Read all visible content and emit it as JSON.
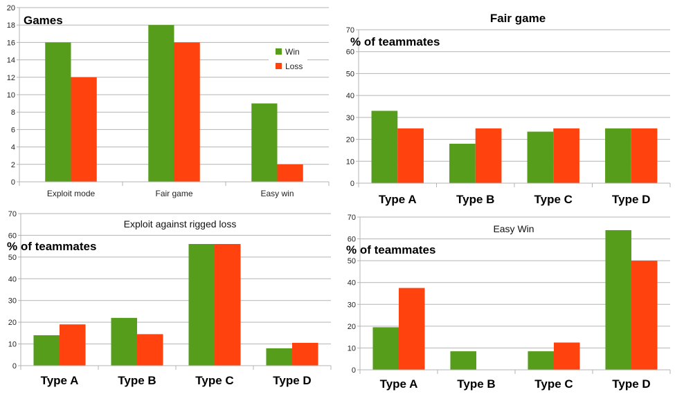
{
  "colors": {
    "win": "#579d1c",
    "loss": "#ff420e",
    "grid": "#b3b3b3"
  },
  "chart_data": [
    {
      "type": "bar",
      "title": "Games",
      "ylabel": "",
      "categories": [
        "Exploit mode",
        "Fair game",
        "Easy win"
      ],
      "series": [
        {
          "name": "Win",
          "values": [
            16,
            18,
            9
          ]
        },
        {
          "name": "Loss",
          "values": [
            12,
            16,
            2
          ]
        }
      ],
      "ylim": [
        0,
        20
      ],
      "yticks": [
        0,
        2,
        4,
        6,
        8,
        10,
        12,
        14,
        16,
        18,
        20
      ],
      "grid": true,
      "legend": "top-right"
    },
    {
      "type": "bar",
      "title": "Fair game",
      "ylabel": "% of teammates",
      "categories": [
        "Type A",
        "Type B",
        "Type C",
        "Type D"
      ],
      "series": [
        {
          "name": "Win",
          "values": [
            33,
            18,
            23.5,
            25
          ]
        },
        {
          "name": "Loss",
          "values": [
            25,
            25,
            25,
            25
          ]
        }
      ],
      "ylim": [
        0,
        70
      ],
      "yticks": [
        0,
        10,
        20,
        30,
        40,
        50,
        60,
        70
      ],
      "grid": true
    },
    {
      "type": "bar",
      "title": "Exploit against rigged loss",
      "ylabel": "% of teammates",
      "categories": [
        "Type A",
        "Type B",
        "Type C",
        "Type D"
      ],
      "series": [
        {
          "name": "Win",
          "values": [
            14,
            22,
            56,
            8
          ]
        },
        {
          "name": "Loss",
          "values": [
            19,
            14.5,
            56,
            10.5
          ]
        }
      ],
      "ylim": [
        0,
        70
      ],
      "yticks": [
        0,
        10,
        20,
        30,
        40,
        50,
        60,
        70
      ],
      "grid": true
    },
    {
      "type": "bar",
      "title": "Easy Win",
      "ylabel": "% of teammates",
      "categories": [
        "Type A",
        "Type B",
        "Type C",
        "Type D"
      ],
      "series": [
        {
          "name": "Win",
          "values": [
            19.5,
            8.5,
            8.5,
            64
          ]
        },
        {
          "name": "Loss",
          "values": [
            37.5,
            0,
            12.5,
            50
          ]
        }
      ],
      "ylim": [
        0,
        70
      ],
      "yticks": [
        0,
        10,
        20,
        30,
        40,
        50,
        60,
        70
      ],
      "grid": true
    }
  ]
}
